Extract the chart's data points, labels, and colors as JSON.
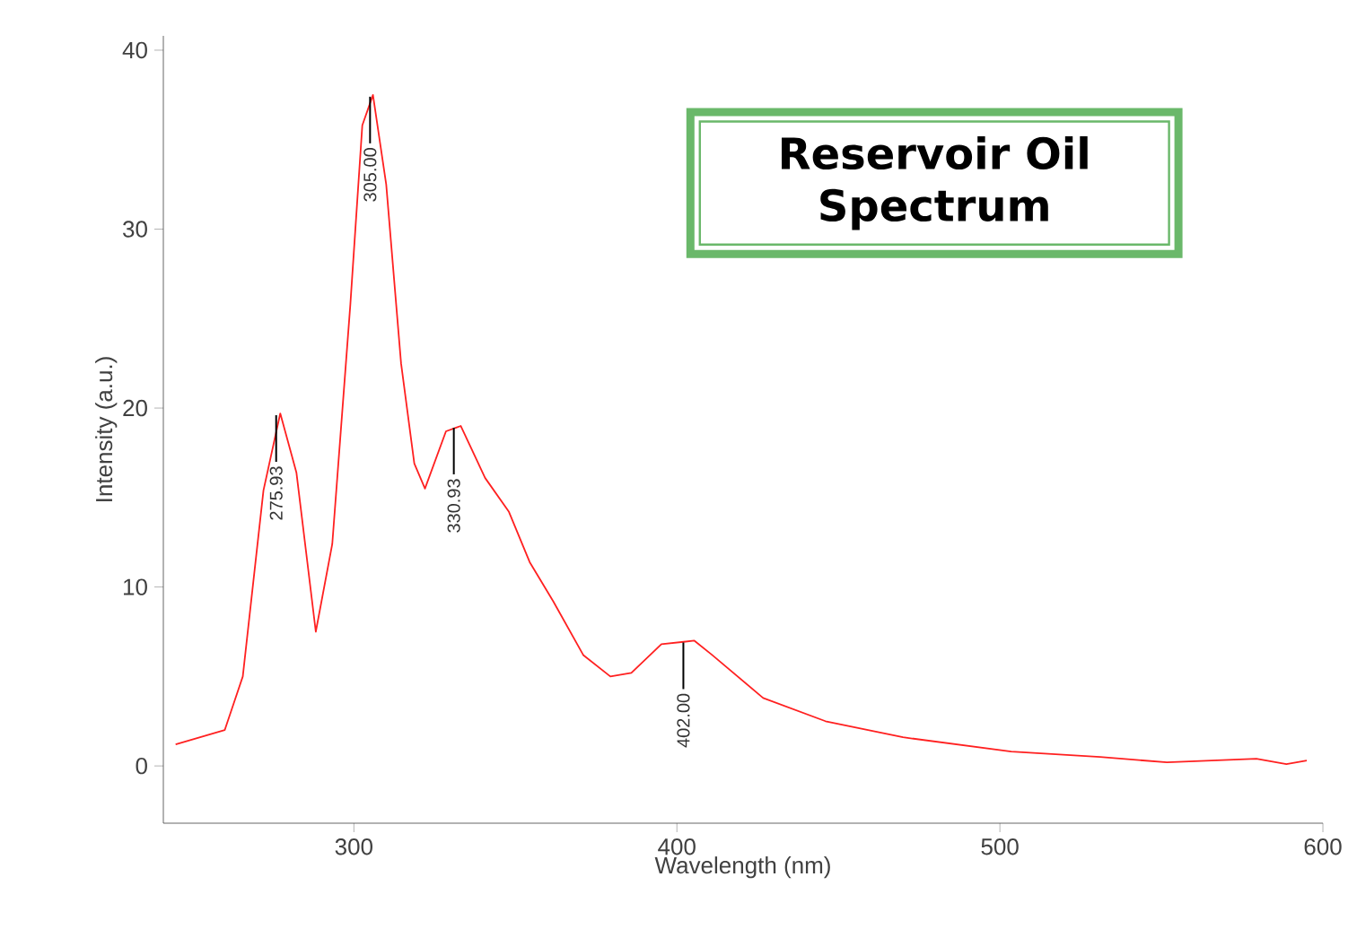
{
  "chart_data": {
    "type": "line",
    "title": "Reservoir Oil Spectrum",
    "xlabel": "Wavelength (nm)",
    "ylabel": "Intensity (a.u.)",
    "xlim": [
      241,
      600
    ],
    "ylim": [
      -3.2,
      40.8
    ],
    "xticks": [
      300,
      400,
      500,
      600
    ],
    "yticks": [
      0,
      10,
      20,
      30,
      40
    ],
    "grid": false,
    "marker": "none",
    "line_style": "solid",
    "series": [
      {
        "color": "#ff2020",
        "x": [
          244.8,
          260,
          265.6,
          272,
          277.2,
          282.2,
          288.2,
          293.3,
          298.9,
          302.6,
          305.9,
          310,
          314.6,
          318.7,
          322,
          328.5,
          333.1,
          340.6,
          348,
          354.4,
          361.7,
          371,
          379.4,
          385.9,
          395.2,
          405.4,
          410.9,
          426.7,
          446,
          470,
          503.5,
          531,
          551.7,
          579.4,
          588.7,
          595
        ],
        "values": [
          1.2,
          2.0,
          5.0,
          15.4,
          19.7,
          16.4,
          7.5,
          12.4,
          25.8,
          35.8,
          37.5,
          32.5,
          22.5,
          16.9,
          15.5,
          18.7,
          19.0,
          16.1,
          14.2,
          11.4,
          9.2,
          6.2,
          5.0,
          5.2,
          6.8,
          7.0,
          6.2,
          3.8,
          2.5,
          1.6,
          0.8,
          0.5,
          0.2,
          0.4,
          0.1,
          0.3
        ]
      }
    ],
    "annotations": [
      {
        "text": "275.93",
        "x": 275.93,
        "y": 19.7
      },
      {
        "text": "305.00",
        "x": 305.0,
        "y": 37.5
      },
      {
        "text": "330.93",
        "x": 330.93,
        "y": 19.0
      },
      {
        "text": "402.00",
        "x": 402.0,
        "y": 7.0
      }
    ]
  }
}
